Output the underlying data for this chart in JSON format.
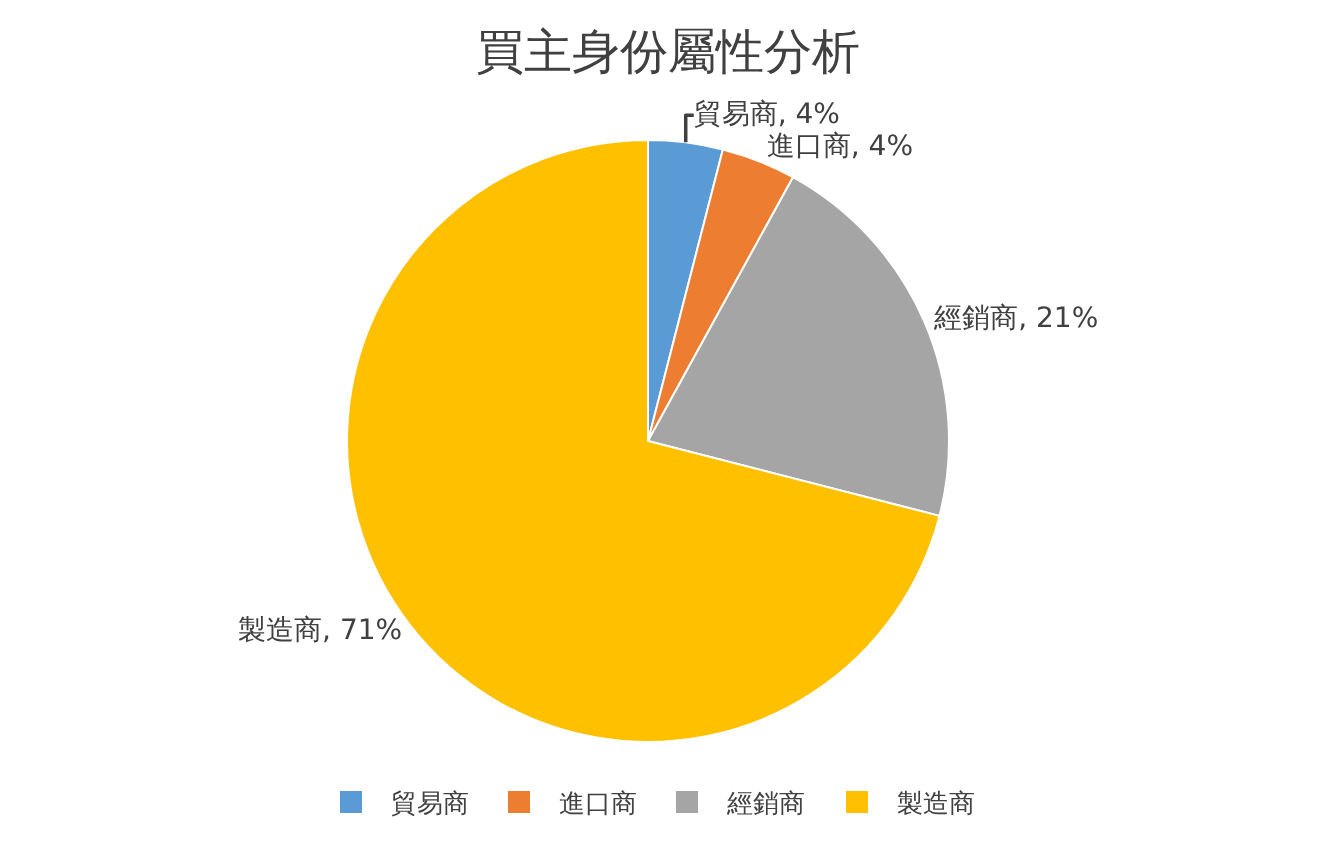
{
  "chart_data": {
    "type": "pie",
    "title": "買主身份屬性分析",
    "categories": [
      "貿易商",
      "進口商",
      "經銷商",
      "製造商"
    ],
    "values": [
      4,
      4,
      21,
      71
    ],
    "colors": [
      "#5b9bd5",
      "#ed7d31",
      "#a5a5a5",
      "#ffc000"
    ],
    "value_labels": [
      "貿易商, 4%",
      "進口商, 4%",
      "經銷商, 21%",
      "製造商, 71%"
    ],
    "legend": "bottom"
  }
}
